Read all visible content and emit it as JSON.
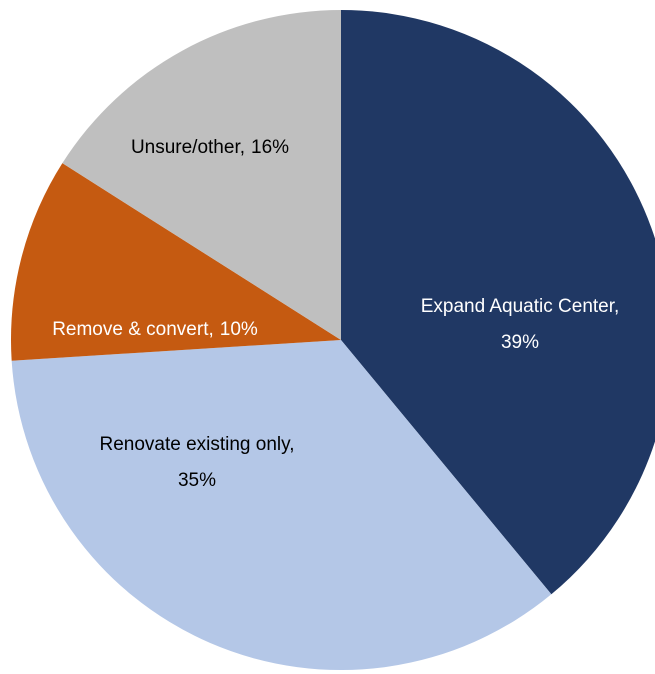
{
  "chart_data": {
    "type": "pie",
    "categories": [
      "Expand Aquatic Center,",
      "Renovate existing only,",
      "Remove & convert,",
      "Unsure/other,"
    ],
    "values": [
      39,
      35,
      10,
      16
    ],
    "value_labels": [
      "39%",
      "35%",
      "10%",
      "16%"
    ],
    "colors": [
      "#203864",
      "#b4c7e7",
      "#c55a11",
      "#bfbfbf"
    ],
    "start_angle": 0,
    "direction": "clockwise"
  }
}
